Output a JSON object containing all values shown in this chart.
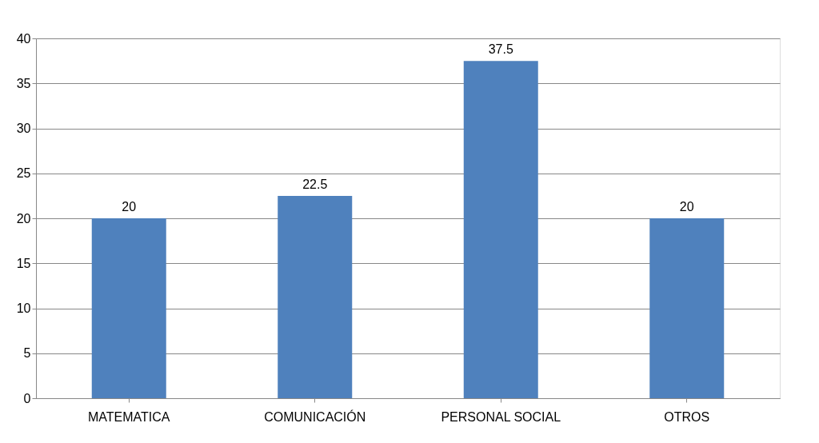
{
  "chart_data": {
    "type": "bar",
    "categories": [
      "MATEMATICA",
      "COMUNICACIÓN",
      "PERSONAL SOCIAL",
      "OTROS"
    ],
    "values": [
      20,
      22.5,
      37.5,
      20
    ],
    "color": "#4f81bd",
    "ylim": [
      0,
      40
    ],
    "yticks": [
      0,
      5,
      10,
      15,
      20,
      25,
      30,
      35,
      40
    ],
    "grid": "y",
    "data_labels": true
  }
}
